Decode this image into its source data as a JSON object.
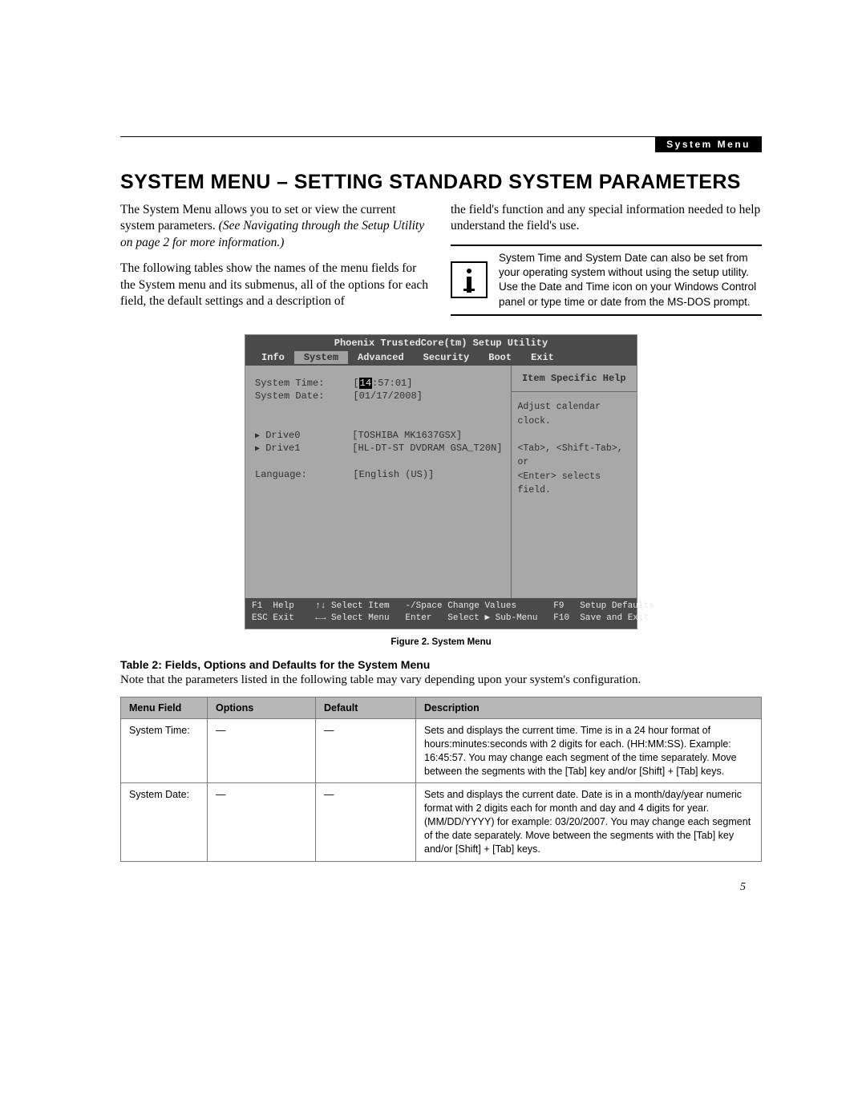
{
  "header": {
    "chip": "System Menu"
  },
  "title": "SYSTEM MENU – SETTING STANDARD SYSTEM PARAMETERS",
  "intro": {
    "left_p1": "The System Menu allows you to set or view the current system parameters. ",
    "left_p1_italic": "(See Navigating through the Setup Utility on page 2 for more information.)",
    "left_p2": "The following tables show the names of the menu fields for the System menu and its submenus, all of the options for each field, the default settings and a description of",
    "right_p1": "the field's function and any special information needed to help understand the field's use.",
    "info_box": "System Time and System Date can also be set from your operating system without using the setup utility. Use the Date and Time icon on your Windows Control panel or type time or date from the MS-DOS prompt."
  },
  "bios": {
    "title": "Phoenix TrustedCore(tm) Setup Utility",
    "tabs": [
      "Info",
      "System",
      "Advanced",
      "Security",
      "Boot",
      "Exit"
    ],
    "active_tab": "System",
    "rows": {
      "time_label": "System Time:",
      "time_value_prefix": "[",
      "time_cursor": "14",
      "time_value_suffix": ":57:01]",
      "date_label": "System Date:",
      "date_value": "[01/17/2008]",
      "drive0_label": "Drive0",
      "drive0_value": "[TOSHIBA MK1637GSX]",
      "drive1_label": "Drive1",
      "drive1_value": "[HL-DT-ST DVDRAM GSA_T20N]",
      "lang_label": "Language:",
      "lang_value": "[English (US)]"
    },
    "help": {
      "title": "Item Specific Help",
      "body": "Adjust calendar clock.\n\n<Tab>, <Shift-Tab>, or\n<Enter> selects field."
    },
    "footer_l1": "F1  Help    ↑↓ Select Item   -/Space Change Values       F9   Setup Defaults",
    "footer_l2": "ESC Exit    ←→ Select Menu   Enter   Select ▶ Sub-Menu   F10  Save and Exit"
  },
  "figure_caption": "Figure 2.   System Menu",
  "table": {
    "title": "Table 2: Fields, Options and Defaults for the System Menu",
    "note": "Note that the parameters listed in the following table may vary depending upon your system's configuration.",
    "columns": [
      "Menu Field",
      "Options",
      "Default",
      "Description"
    ],
    "rows": [
      {
        "field": "System Time:",
        "options": "—",
        "default": "—",
        "desc": "Sets and displays the current time. Time is in a 24 hour format of hours:minutes:seconds with 2 digits for each. (HH:MM:SS). Example: 16:45:57. You may change each segment of the time separately. Move between the segments with the [Tab] key and/or [Shift] + [Tab] keys."
      },
      {
        "field": "System Date:",
        "options": "—",
        "default": "—",
        "desc": "Sets and displays the current date. Date is in a month/day/year numeric format with 2 digits each for month and day and 4 digits for year. (MM/DD/YYYY) for example: 03/20/2007. You may change each segment of the date separately. Move between the segments with the [Tab] key and/or [Shift] + [Tab] keys."
      }
    ]
  },
  "page_number": "5"
}
